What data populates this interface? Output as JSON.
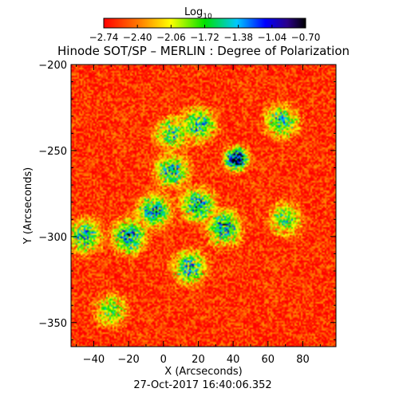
{
  "chart_data": {
    "type": "heatmap",
    "title": "Hinode SOT/SP – MERLIN : Degree of Polarization",
    "xlabel": "X (Arcseconds)",
    "ylabel": "Y (Arcseconds)",
    "timestamp": "27-Oct-2017 16:40:06.352",
    "xlim": [
      -53,
      99
    ],
    "ylim": [
      -364,
      -200
    ],
    "x_ticks": [
      -40,
      -20,
      0,
      20,
      40,
      60,
      80
    ],
    "x_tick_labels": [
      "−40",
      "−20",
      "0",
      "20",
      "40",
      "60",
      "80"
    ],
    "y_ticks": [
      -350,
      -300,
      -250,
      -200
    ],
    "y_tick_labels": [
      "−350",
      "−300",
      "−250",
      "−200"
    ],
    "colorbar": {
      "label_base": "Log",
      "label_sub": "10",
      "range": [
        -2.74,
        -0.7
      ],
      "tick_values": [
        -2.74,
        -2.4,
        -2.06,
        -1.72,
        -1.38,
        -1.04,
        -0.7
      ],
      "tick_labels": [
        "−2.74",
        "−2.40",
        "−2.06",
        "−1.72",
        "−1.38",
        "−1.04",
        "−0.70"
      ]
    },
    "background_level": -2.6,
    "features": [
      {
        "kind": "spot",
        "x": 42,
        "y": -255,
        "level": -0.72
      },
      {
        "kind": "plage",
        "x": -20,
        "y": -300,
        "level": -1.4
      },
      {
        "kind": "plage",
        "x": -5,
        "y": -285,
        "level": -1.42
      },
      {
        "kind": "plage",
        "x": 5,
        "y": -262,
        "level": -1.5
      },
      {
        "kind": "plage",
        "x": 20,
        "y": -282,
        "level": -1.4
      },
      {
        "kind": "plage",
        "x": 35,
        "y": -295,
        "level": -1.4
      },
      {
        "kind": "plage",
        "x": 15,
        "y": -318,
        "level": -1.5
      },
      {
        "kind": "plage",
        "x": -45,
        "y": -300,
        "level": -1.55
      },
      {
        "kind": "plage",
        "x": 20,
        "y": -235,
        "level": -1.55
      },
      {
        "kind": "plage",
        "x": 5,
        "y": -240,
        "level": -1.65
      },
      {
        "kind": "plage",
        "x": 68,
        "y": -233,
        "level": -1.6
      },
      {
        "kind": "plage",
        "x": 70,
        "y": -290,
        "level": -1.75
      },
      {
        "kind": "plage",
        "x": -30,
        "y": -343,
        "level": -1.85
      }
    ]
  }
}
